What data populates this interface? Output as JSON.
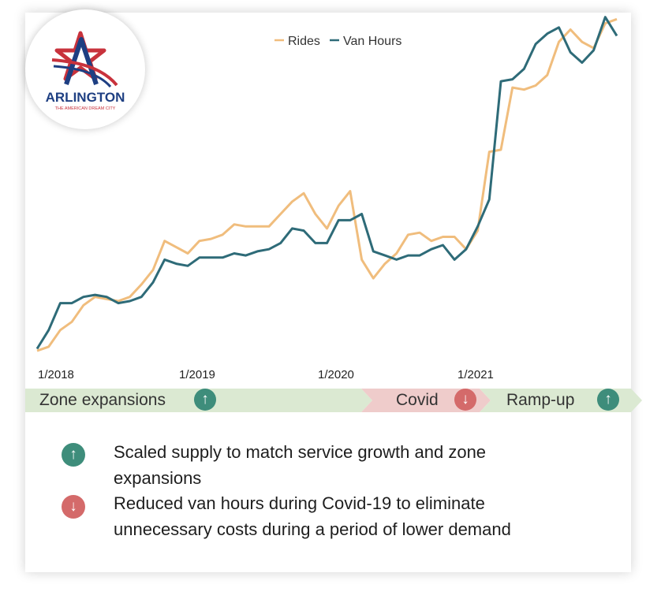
{
  "logo": {
    "name": "ARLINGTON",
    "tagline": "THE AMERICAN DREAM CITY",
    "colors": {
      "red": "#c8323c",
      "blue": "#1e3f82"
    }
  },
  "chart_data": {
    "type": "line",
    "legend": [
      "Rides",
      "Van Hours"
    ],
    "legend_position": "top-center",
    "grid": false,
    "y_axis_visible": false,
    "x_tick_labels": [
      "1/2018",
      "1/2019",
      "1/2020",
      "1/2021"
    ],
    "x_ticks_at": [
      0,
      12,
      24,
      36
    ],
    "series": [
      {
        "name": "Rides",
        "color": "#f0bd7d",
        "values": [
          3,
          5,
          13,
          17,
          25,
          29,
          28,
          27,
          29,
          35,
          42,
          56,
          53,
          50,
          56,
          57,
          59,
          64,
          63,
          63,
          63,
          69,
          75,
          79,
          69,
          62,
          73,
          80,
          47,
          38,
          45,
          50,
          59,
          60,
          56,
          58,
          58,
          52,
          61,
          99,
          100,
          130,
          129,
          131,
          136,
          152,
          158,
          152,
          149,
          161,
          163
        ]
      },
      {
        "name": "Van Hours",
        "color": "#2e6b78",
        "values": [
          4,
          13,
          26,
          26,
          29,
          30,
          29,
          26,
          27,
          29,
          36,
          47,
          45,
          44,
          48,
          48,
          48,
          50,
          49,
          51,
          52,
          55,
          62,
          61,
          55,
          55,
          66,
          66,
          69,
          51,
          49,
          47,
          49,
          49,
          52,
          54,
          47,
          52,
          63,
          76,
          133,
          134,
          139,
          151,
          156,
          159,
          147,
          142,
          148,
          164,
          155
        ]
      }
    ],
    "phases": [
      {
        "label": "Zone expansions",
        "direction": "up",
        "color": "#dbe9d2"
      },
      {
        "label": "Covid",
        "direction": "down",
        "color": "#efcccb"
      },
      {
        "label": "Ramp-up",
        "direction": "up",
        "color": "#dbe9d2"
      }
    ]
  },
  "notes": [
    {
      "direction": "up",
      "text_line1": "Scaled supply to match service growth and zone",
      "text_line2": "expansions"
    },
    {
      "direction": "down",
      "text_line1": "Reduced van hours during Covid-19 to eliminate",
      "text_line2": "unnecessary costs during a period of lower demand"
    }
  ],
  "colors": {
    "up": "#3e8d7b",
    "down": "#d46a6a"
  }
}
